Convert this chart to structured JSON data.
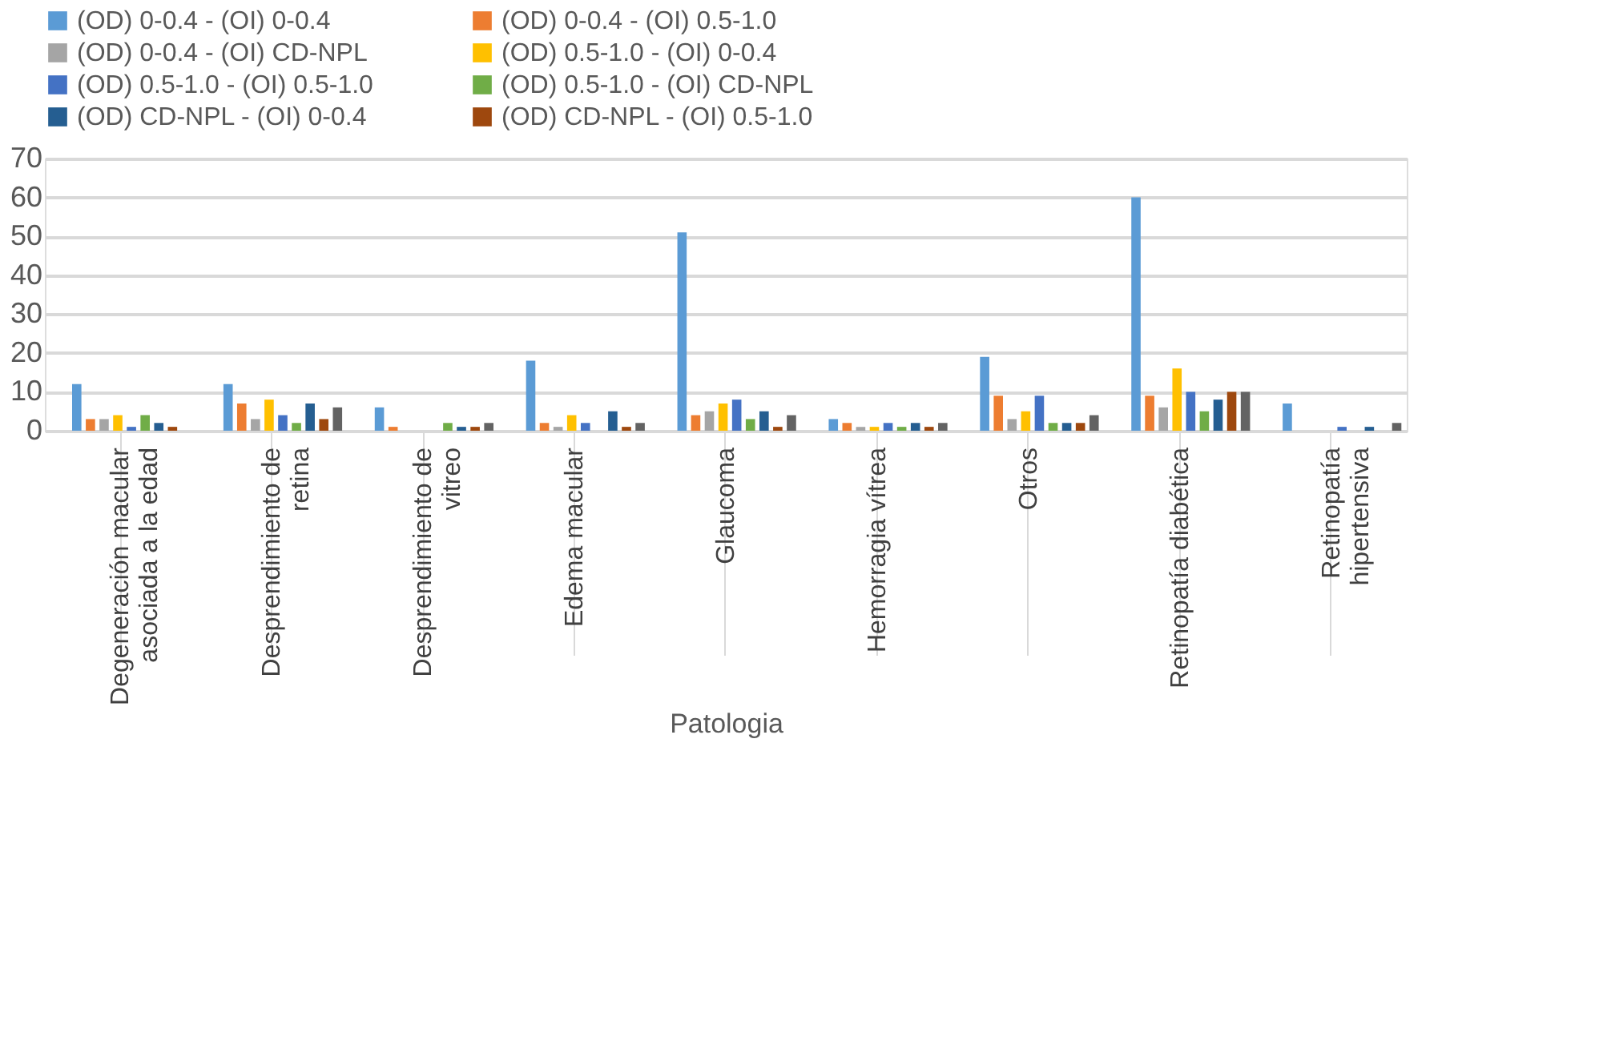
{
  "chart_data": {
    "type": "bar",
    "xlabel": "Patologia",
    "categories": [
      "Degeneración macular asociada a la edad",
      "Desprendimiento de retina",
      "Desprendimiento de vitreo",
      "Edema macular",
      "Glaucoma",
      "Hemorragia vítrea",
      "Otros",
      "Retinopatía diabética",
      "Retinopatía hipertensiva"
    ],
    "series": [
      {
        "name": "(OD) 0-0.4 - (OI) 0-0.4",
        "color": "#5b9bd5",
        "values": [
          12,
          12,
          6,
          18,
          51,
          3,
          19,
          60,
          7
        ]
      },
      {
        "name": "(OD) 0-0.4 - (OI) 0.5-1.0",
        "color": "#ed7d31",
        "values": [
          3,
          7,
          1,
          2,
          4,
          2,
          9,
          9,
          0
        ]
      },
      {
        "name": "(OD) 0-0.4 - (OI) CD-NPL",
        "color": "#a5a5a5",
        "values": [
          3,
          3,
          0,
          1,
          5,
          1,
          3,
          6,
          0
        ]
      },
      {
        "name": "(OD) 0.5-1.0 - (OI) 0-0.4",
        "color": "#ffc000",
        "values": [
          4,
          8,
          0,
          4,
          7,
          1,
          5,
          16,
          0
        ]
      },
      {
        "name": "(OD) 0.5-1.0 - (OI) 0.5-1.0",
        "color": "#4472c4",
        "values": [
          1,
          4,
          0,
          2,
          8,
          2,
          9,
          10,
          1
        ]
      },
      {
        "name": "(OD) 0.5-1.0 - (OI) CD-NPL",
        "color": "#70ad47",
        "values": [
          4,
          2,
          2,
          0,
          3,
          1,
          2,
          5,
          0
        ]
      },
      {
        "name": "(OD) CD-NPL - (OI) 0-0.4",
        "color": "#255e91",
        "values": [
          2,
          7,
          1,
          5,
          5,
          2,
          2,
          8,
          1
        ]
      },
      {
        "name": "(OD) CD-NPL - (OI) 0.5-1.0",
        "color": "#9e480e",
        "values": [
          1,
          3,
          1,
          1,
          1,
          1,
          2,
          10,
          0
        ]
      },
      {
        "color": "#636363",
        "values": [
          0,
          6,
          2,
          2,
          4,
          2,
          4,
          10,
          2
        ]
      }
    ],
    "ylim": [
      0,
      70
    ],
    "yticks": [
      0,
      10,
      20,
      30,
      40,
      50,
      60,
      70
    ],
    "grid": "y",
    "legend": "top"
  }
}
